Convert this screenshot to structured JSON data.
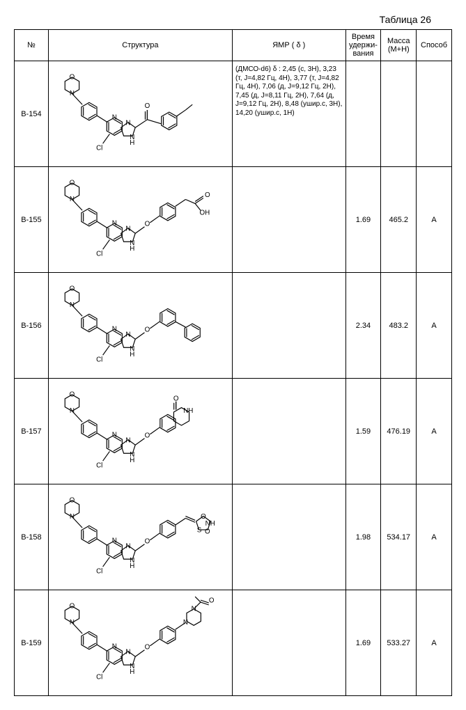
{
  "title": "Таблица 26",
  "columns": {
    "no": "№",
    "structure": "Структура",
    "nmr": "ЯМР ( δ )",
    "retention": "Время удержи-\nвания",
    "mass": "Масса (M+H)",
    "method": "Способ"
  },
  "rows": [
    {
      "no": "B-154",
      "nmr": "(ДМСО-d6) δ :\n2,45 (с, 3H), 3,23 (т, J=4,82 Гц, 4H), 3,77 (т, J=4,82 Гц, 4H), 7,06 (д, J=9,12 Гц, 2H), 7,45 (д, J=8,11 Гц, 2H), 7,64 (д, J=9,12 Гц, 2H), 8,48 (ушир.с, 3H), 14,20 (ушир.с, 1H)",
      "retention": "",
      "mass": "",
      "method": ""
    },
    {
      "no": "B-155",
      "nmr": "",
      "retention": "1.69",
      "mass": "465.2",
      "method": "A"
    },
    {
      "no": "B-156",
      "nmr": "",
      "retention": "2.34",
      "mass": "483.2",
      "method": "A"
    },
    {
      "no": "B-157",
      "nmr": "",
      "retention": "1.59",
      "mass": "476.19",
      "method": "A"
    },
    {
      "no": "B-158",
      "nmr": "",
      "retention": "1.98",
      "mass": "534.17",
      "method": "A"
    },
    {
      "no": "B-159",
      "nmr": "",
      "retention": "1.69",
      "mass": "533.27",
      "method": "A"
    }
  ],
  "structure_stroke": "#000000",
  "structure_stroke_width": 1.2,
  "atom_font_size": 10
}
